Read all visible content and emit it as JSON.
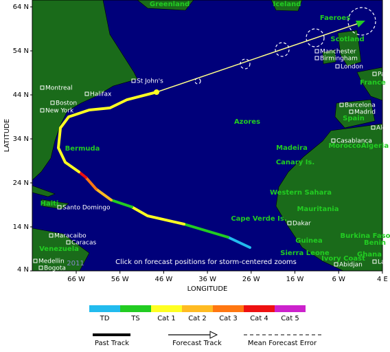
{
  "map": {
    "lat_labels": [
      "64 N",
      "54 N",
      "44 N",
      "34 N",
      "24 N",
      "14 N",
      "4 N"
    ],
    "lon_labels": [
      "66 W",
      "56 W",
      "46 W",
      "36 W",
      "26 W",
      "16 W",
      "6 W",
      "4 E"
    ],
    "y_axis_title": "LATITUDE",
    "x_axis_title": "LONGITUDE",
    "note": "Click on forecast positions for storm-centered zooms",
    "year": "2011",
    "regions": [
      "Greenland",
      "Iceland",
      "Faeroes",
      "Scotland",
      "Bermuda",
      "Azores",
      "Madeira",
      "Canary Is.",
      "Western Sahara",
      "Mauritania",
      "Cape Verde Is.",
      "Morocco",
      "Spain",
      "France",
      "Algeria",
      "Sierra Leone",
      "Guinea",
      "Ivory Coast",
      "Ghana",
      "Burkina Faso",
      "Benin",
      "Haiti",
      "Venezuela"
    ],
    "cities": [
      "Montreal",
      "Halifax",
      "Boston",
      "New York",
      "St John's",
      "Santo Domingo",
      "Maracaibo",
      "Caracas",
      "Medellin",
      "Bogota",
      "Manchester",
      "Birmingham",
      "London",
      "Paris",
      "Barcelona",
      "Madrid",
      "Algiers",
      "Casablanca",
      "Dakar",
      "Abidjan",
      "Lagos"
    ]
  },
  "legend": {
    "intensity": [
      "TD",
      "TS",
      "Cat 1",
      "Cat 2",
      "Cat 3",
      "Cat 4",
      "Cat 5"
    ],
    "colors": [
      "#22bbee",
      "#22cc22",
      "#ffff22",
      "#ffbb22",
      "#ff7711",
      "#ee1111",
      "#cc22cc"
    ],
    "past_track": "Past Track",
    "forecast_track": "Forecast Track",
    "forecast_error": "Mean Forecast Error"
  }
}
